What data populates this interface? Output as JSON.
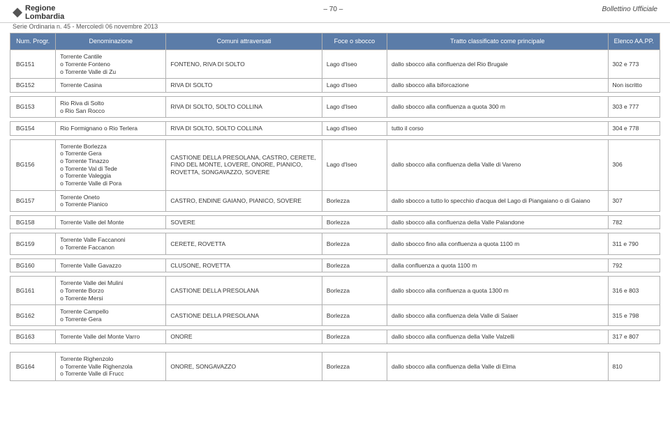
{
  "header": {
    "logo_line1": "Regione",
    "logo_line2": "Lombardia",
    "page_number": "– 70 –",
    "right_text": "Bollettino Ufficiale",
    "subheader": "Serie Ordinaria n. 45 - Mercoledì 06 novembre 2013"
  },
  "table": {
    "columns": [
      "Num. Progr.",
      "Denominazione",
      "Comuni attraversati",
      "Foce o sbocco",
      "Tratto classificato come principale",
      "Elenco AA.PP."
    ],
    "col_widths_pct": [
      7,
      17,
      24,
      10,
      34,
      8
    ],
    "header_bg": "#5b7ca8",
    "header_fg": "#ffffff",
    "border_color": "#b0b0b0",
    "rows": [
      {
        "num": "BG151",
        "denom": "Torrente Cantile\no Torrente Fonteno\no Torrente Valle di Zu",
        "comuni": "FONTENO, RIVA DI SOLTO",
        "foce": "Lago d'Iseo",
        "tratto": "dallo sbocco alla confluenza del Rio Brugale",
        "elenco": "302 e 773"
      },
      {
        "num": "BG152",
        "denom": "Torrente Casina",
        "comuni": "RIVA DI SOLTO",
        "foce": "Lago d'Iseo",
        "tratto": "dallo sbocco alla biforcazione",
        "elenco": "Non iscritto"
      },
      {
        "spacer": true
      },
      {
        "num": "BG153",
        "denom": "Rio Riva di Solto\no Rio San Rocco",
        "comuni": "RIVA DI SOLTO, SOLTO COLLINA",
        "foce": "Lago d'Iseo",
        "tratto": "dallo sbocco alla confluenza a quota 300 m",
        "elenco": "303 e 777"
      },
      {
        "spacer": true
      },
      {
        "num": "BG154",
        "denom": "Rio Formignano o Rio Terlera",
        "comuni": "RIVA DI SOLTO, SOLTO COLLINA",
        "foce": "Lago d'Iseo",
        "tratto": "tutto il corso",
        "elenco": "304 e 778"
      },
      {
        "spacer": true
      },
      {
        "num": "BG156",
        "denom": "Torrente Borlezza\no Torrente Gera\no Torrente Tinazzo\no Torrente Val di Tede\no Torrente Valeggia\no Torrente Valle di Pora",
        "comuni": "CASTIONE DELLA PRESOLANA, CASTRO, CERETE, FINO DEL MONTE, LOVERE, ONORE, PIANICO, ROVETTA, SONGAVAZZO, SOVERE",
        "foce": "Lago d'Iseo",
        "tratto": "dallo sbocco alla confluenza della Valle di Vareno",
        "elenco": "306"
      },
      {
        "num": "BG157",
        "denom": "Torrente Oneto\no Torrente Pianico",
        "comuni": "CASTRO, ENDINE GAIANO, PIANICO, SOVERE",
        "foce": "Borlezza",
        "tratto": "dallo sbocco a tutto lo specchio d'acqua del Lago di Piangaiano o di Gaiano",
        "elenco": "307"
      },
      {
        "spacer": true
      },
      {
        "num": "BG158",
        "denom": "Torrente Valle del Monte",
        "comuni": "SOVERE",
        "foce": "Borlezza",
        "tratto": "dallo sbocco alla confluenza della Valle Palandone",
        "elenco": "782"
      },
      {
        "spacer": true
      },
      {
        "num": "BG159",
        "denom": "Torrente Valle Faccanoni\no Torrente Faccanon",
        "comuni": "CERETE, ROVETTA",
        "foce": "Borlezza",
        "tratto": "dallo sbocco fino alla confluenza a quota 1100 m",
        "elenco": "311 e 790"
      },
      {
        "spacer": true
      },
      {
        "num": "BG160",
        "denom": "Torrente Valle Gavazzo",
        "comuni": "CLUSONE, ROVETTA",
        "foce": "Borlezza",
        "tratto": "dalla confluenza a quota 1100 m",
        "elenco": "792"
      },
      {
        "spacer": true
      },
      {
        "num": "BG161",
        "denom": "Torrente Valle dei Mulini\no Torrente Borzo\no Torrente Mersi",
        "comuni": "CASTIONE DELLA PRESOLANA",
        "foce": "Borlezza",
        "tratto": "dallo sbocco alla confluenza a quota 1300 m",
        "elenco": "316 e 803"
      },
      {
        "num": "BG162",
        "denom": "Torrente Campello\no Torrente Gera",
        "comuni": "CASTIONE DELLA PRESOLANA",
        "foce": "Borlezza",
        "tratto": "dallo sbocco alla confluenza dela Valle di Salaer",
        "elenco": "315 e 798"
      },
      {
        "spacer": true
      },
      {
        "num": "BG163",
        "denom": "Torrente Valle del Monte Varro",
        "comuni": "ONORE",
        "foce": "Borlezza",
        "tratto": "dallo sbocco alla confluenza della Valle Valzelli",
        "elenco": "317 e 807"
      },
      {
        "spacer": true
      },
      {
        "spacer": true
      },
      {
        "num": "BG164",
        "denom": "Torrente Righenzolo\no Torrente Valle Righenzola\no Torrente Valle di Frucc",
        "comuni": "ONORE, SONGAVAZZO",
        "foce": "Borlezza",
        "tratto": "dallo sbocco alla confluenza della Valle di Elma",
        "elenco": "810"
      }
    ]
  }
}
